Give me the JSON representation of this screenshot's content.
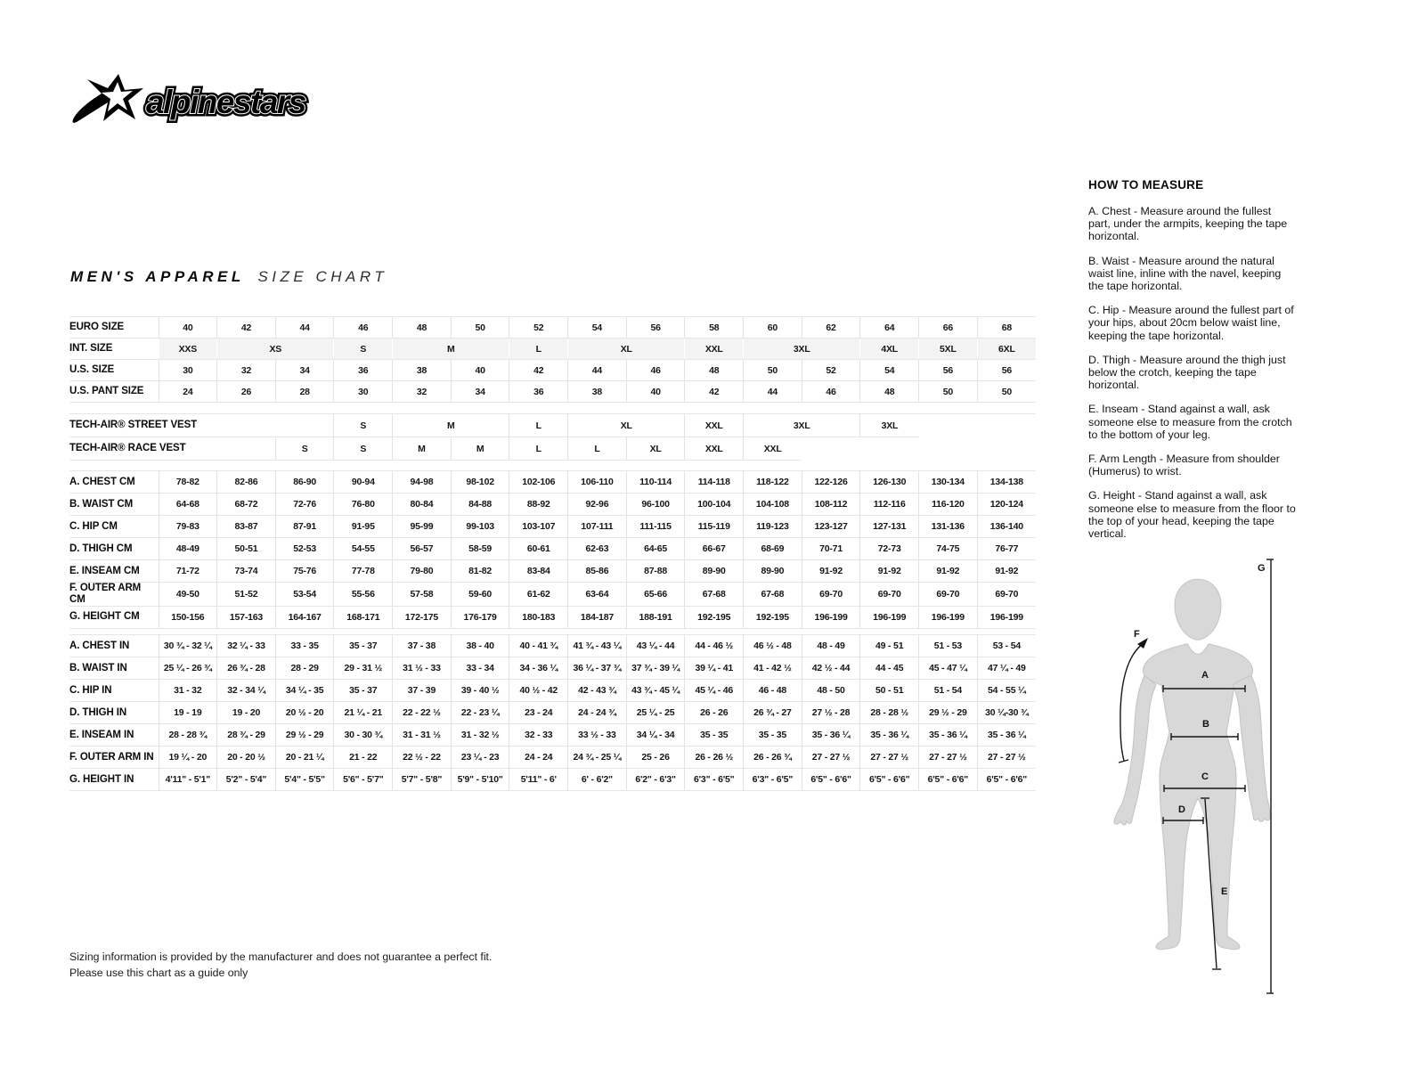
{
  "brand": {
    "name": "alpinestars"
  },
  "title": {
    "primary": "MEN'S APPAREL",
    "secondary": "SIZE CHART"
  },
  "size_table": {
    "sections": [
      {
        "name": "sizes",
        "rows": [
          {
            "label": "EURO SIZE",
            "cells": [
              "40",
              "42",
              "44",
              "46",
              "48",
              "50",
              "52",
              "54",
              "56",
              "58",
              "60",
              "62",
              "64",
              "66",
              "68"
            ]
          },
          {
            "label": "INT. SIZE",
            "shade": true,
            "cells": [
              {
                "t": "XXS"
              },
              {
                "t": "XS",
                "s": 2
              },
              {
                "t": "S"
              },
              {
                "t": "M",
                "s": 2
              },
              {
                "t": "L"
              },
              {
                "t": "XL",
                "s": 2
              },
              {
                "t": "XXL"
              },
              {
                "t": "3XL",
                "s": 2
              },
              {
                "t": "4XL"
              },
              {
                "t": "5XL"
              },
              {
                "t": "6XL"
              }
            ]
          },
          {
            "label": "U.S. SIZE",
            "cells": [
              "30",
              "32",
              "34",
              "36",
              "38",
              "40",
              "42",
              "44",
              "46",
              "48",
              "50",
              "52",
              "54",
              "56",
              "56"
            ]
          },
          {
            "label": "U.S. PANT SIZE",
            "cells": [
              "24",
              "26",
              "28",
              "30",
              "32",
              "34",
              "36",
              "38",
              "40",
              "42",
              "44",
              "46",
              "48",
              "50",
              "50"
            ]
          }
        ]
      },
      {
        "name": "techair",
        "rows": [
          {
            "label": "TECH-AIR® STREET VEST",
            "labelSpan": 4,
            "cells": [
              {
                "t": "S"
              },
              {
                "t": "M",
                "s": 2
              },
              {
                "t": "L"
              },
              {
                "t": "XL",
                "s": 2
              },
              {
                "t": "XXL"
              },
              {
                "t": "3XL",
                "s": 2
              },
              {
                "t": "3XL"
              },
              {
                "t": "",
                "b": true
              },
              {
                "t": "",
                "b": true
              }
            ]
          },
          {
            "label": "TECH-AIR® RACE VEST",
            "labelSpan": 3,
            "cells": [
              "S",
              "S",
              "M",
              "M",
              "L",
              "L",
              "XL",
              "XXL",
              "XXL",
              {
                "t": "",
                "b": true
              },
              {
                "t": "",
                "b": true
              },
              {
                "t": "",
                "b": true
              },
              {
                "t": "",
                "b": true
              }
            ]
          }
        ]
      },
      {
        "name": "cm",
        "rows": [
          {
            "label": "A. CHEST CM",
            "cells": [
              "78-82",
              "82-86",
              "86-90",
              "90-94",
              "94-98",
              "98-102",
              "102-106",
              "106-110",
              "110-114",
              "114-118",
              "118-122",
              "122-126",
              "126-130",
              "130-134",
              "134-138"
            ]
          },
          {
            "label": "B. WAIST CM",
            "cells": [
              "64-68",
              "68-72",
              "72-76",
              "76-80",
              "80-84",
              "84-88",
              "88-92",
              "92-96",
              "96-100",
              "100-104",
              "104-108",
              "108-112",
              "112-116",
              "116-120",
              "120-124"
            ]
          },
          {
            "label": "C. HIP CM",
            "cells": [
              "79-83",
              "83-87",
              "87-91",
              "91-95",
              "95-99",
              "99-103",
              "103-107",
              "107-111",
              "111-115",
              "115-119",
              "119-123",
              "123-127",
              "127-131",
              "131-136",
              "136-140"
            ]
          },
          {
            "label": "D. THIGH CM",
            "cells": [
              "48-49",
              "50-51",
              "52-53",
              "54-55",
              "56-57",
              "58-59",
              "60-61",
              "62-63",
              "64-65",
              "66-67",
              "68-69",
              "70-71",
              "72-73",
              "74-75",
              "76-77"
            ]
          },
          {
            "label": "E. INSEAM CM",
            "cells": [
              "71-72",
              "73-74",
              "75-76",
              "77-78",
              "79-80",
              "81-82",
              "83-84",
              "85-86",
              "87-88",
              "89-90",
              "89-90",
              "91-92",
              "91-92",
              "91-92",
              "91-92"
            ]
          },
          {
            "label": "F. OUTER ARM CM",
            "cells": [
              "49-50",
              "51-52",
              "53-54",
              "55-56",
              "57-58",
              "59-60",
              "61-62",
              "63-64",
              "65-66",
              "67-68",
              "67-68",
              "69-70",
              "69-70",
              "69-70",
              "69-70"
            ]
          },
          {
            "label": "G. HEIGHT CM",
            "cells": [
              "150-156",
              "157-163",
              "164-167",
              "168-171",
              "172-175",
              "176-179",
              "180-183",
              "184-187",
              "188-191",
              "192-195",
              "192-195",
              "196-199",
              "196-199",
              "196-199",
              "196-199"
            ]
          }
        ]
      },
      {
        "name": "inches",
        "rows": [
          {
            "label": "A. CHEST IN",
            "cells": [
              "30 ¾ - 32 ¼",
              "32 ¼ - 33",
              "33 - 35",
              "35 - 37",
              "37 - 38",
              "38 - 40",
              "40 - 41 ¾",
              "41 ¾ - 43 ¼",
              "43 ¼ - 44",
              "44 - 46 ½",
              "46 ½ - 48",
              "48 - 49",
              "49 - 51",
              "51 - 53",
              "53 - 54"
            ]
          },
          {
            "label": "B. WAIST IN",
            "cells": [
              "25 ¼ - 26 ¾",
              "26 ¾ - 28",
              "28 - 29",
              "29 - 31 ½",
              "31 ½ - 33",
              "33 - 34",
              "34 - 36 ¼",
              "36 ¼ - 37 ¾",
              "37 ¾ - 39 ¼",
              "39 ¼ - 41",
              "41 - 42 ½",
              "42 ½ - 44",
              "44 - 45",
              "45 - 47 ¼",
              "47 ¼ - 49"
            ]
          },
          {
            "label": "C. HIP IN",
            "cells": [
              "31 - 32",
              "32 - 34 ¼",
              "34 ¼ - 35",
              "35 - 37",
              "37 - 39",
              "39 - 40 ½",
              "40 ½ - 42",
              "42 - 43 ¾",
              "43 ¾ - 45 ¼",
              "45 ¼ - 46",
              "46 - 48",
              "48 - 50",
              "50 - 51",
              "51 - 54",
              "54 - 55 ¼"
            ]
          },
          {
            "label": "D. THIGH IN",
            "cells": [
              "19 - 19",
              "19 - 20",
              "20 ½ - 20",
              "21 ¼ - 21",
              "22 - 22 ½",
              "22 - 23 ¼",
              "23 - 24",
              "24 - 24 ¾",
              "25 ¼ - 25",
              "26 - 26",
              "26 ¾ - 27",
              "27 ½ - 28",
              "28 - 28 ½",
              "29 ½ - 29",
              "30 ¼-30 ¾"
            ]
          },
          {
            "label": "E. INSEAM IN",
            "cells": [
              "28 - 28 ¾",
              "28 ¾ - 29",
              "29 ½ - 29",
              "30 - 30 ¾",
              "31 - 31 ½",
              "31 - 32 ½",
              "32 - 33",
              "33 ½ - 33",
              "34 ¼ - 34",
              "35 - 35",
              "35 - 35",
              "35 - 36 ¼",
              "35 - 36 ¼",
              "35 - 36 ¼",
              "35 - 36 ¼"
            ]
          },
          {
            "label": "F. OUTER ARM IN",
            "cells": [
              "19 ¼ - 20",
              "20 - 20 ½",
              "20 - 21 ¼",
              "21 - 22",
              "22 ½ - 22",
              "23 ¼ - 23",
              "24 - 24",
              "24 ¾ - 25 ¼",
              "25 - 26",
              "26 - 26 ½",
              "26 - 26 ¾",
              "27 - 27 ½",
              "27 - 27 ½",
              "27 - 27 ½",
              "27 - 27 ½"
            ]
          },
          {
            "label": "G. HEIGHT IN",
            "cells": [
              "4'11\" - 5'1\"",
              "5'2\" - 5'4\"",
              "5'4\" - 5'5\"",
              "5'6\" - 5'7\"",
              "5'7\" - 5'8\"",
              "5'9\" - 5'10\"",
              "5'11\" - 6'",
              "6' - 6'2\"",
              "6'2\" - 6'3\"",
              "6'3\" - 6'5\"",
              "6'3\" - 6'5\"",
              "6'5\" - 6'6\"",
              "6'5\" - 6'6\"",
              "6'5\" - 6'6\"",
              "6'5\" - 6'6\""
            ]
          }
        ]
      }
    ]
  },
  "how_to_measure": {
    "heading": "HOW TO MEASURE",
    "items": [
      "A. Chest - Measure around the fullest part, under the armpits, keeping the tape horizontal.",
      "B. Waist - Measure around the natural waist line, inline with the navel, keeping the tape horizontal.",
      "C. Hip - Measure around the fullest part of your hips, about 20cm below waist line, keeping the tape horizontal.",
      "D. Thigh - Measure around the thigh just below the crotch, keeping the tape horizontal.",
      "E. Inseam - Stand against a wall, ask someone else to measure from the crotch to the bottom of your leg.",
      "F. Arm Length - Measure from shoulder (Humerus) to wrist.",
      "G. Height - Stand against a wall, ask someone else to measure from the floor to the top of your head, keeping the tape vertical."
    ]
  },
  "figure": {
    "labels": [
      "A",
      "B",
      "C",
      "D",
      "E",
      "F",
      "G"
    ]
  },
  "footer": {
    "line1": "Sizing information is provided by the manufacturer and does not guarantee a perfect fit.",
    "line2": "Please use this chart as a guide only"
  }
}
